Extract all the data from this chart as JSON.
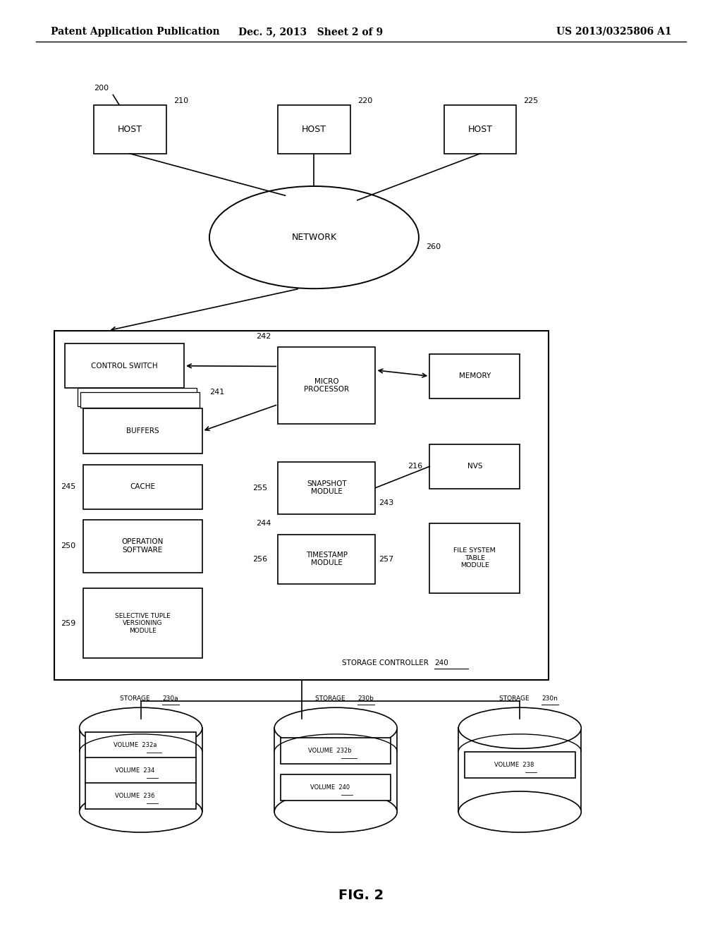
{
  "header_left": "Patent Application Publication",
  "header_mid": "Dec. 5, 2013   Sheet 2 of 9",
  "header_right": "US 2013/0325806 A1",
  "fig_label": "FIG. 2",
  "diagram_ref": "200",
  "background": "#ffffff"
}
